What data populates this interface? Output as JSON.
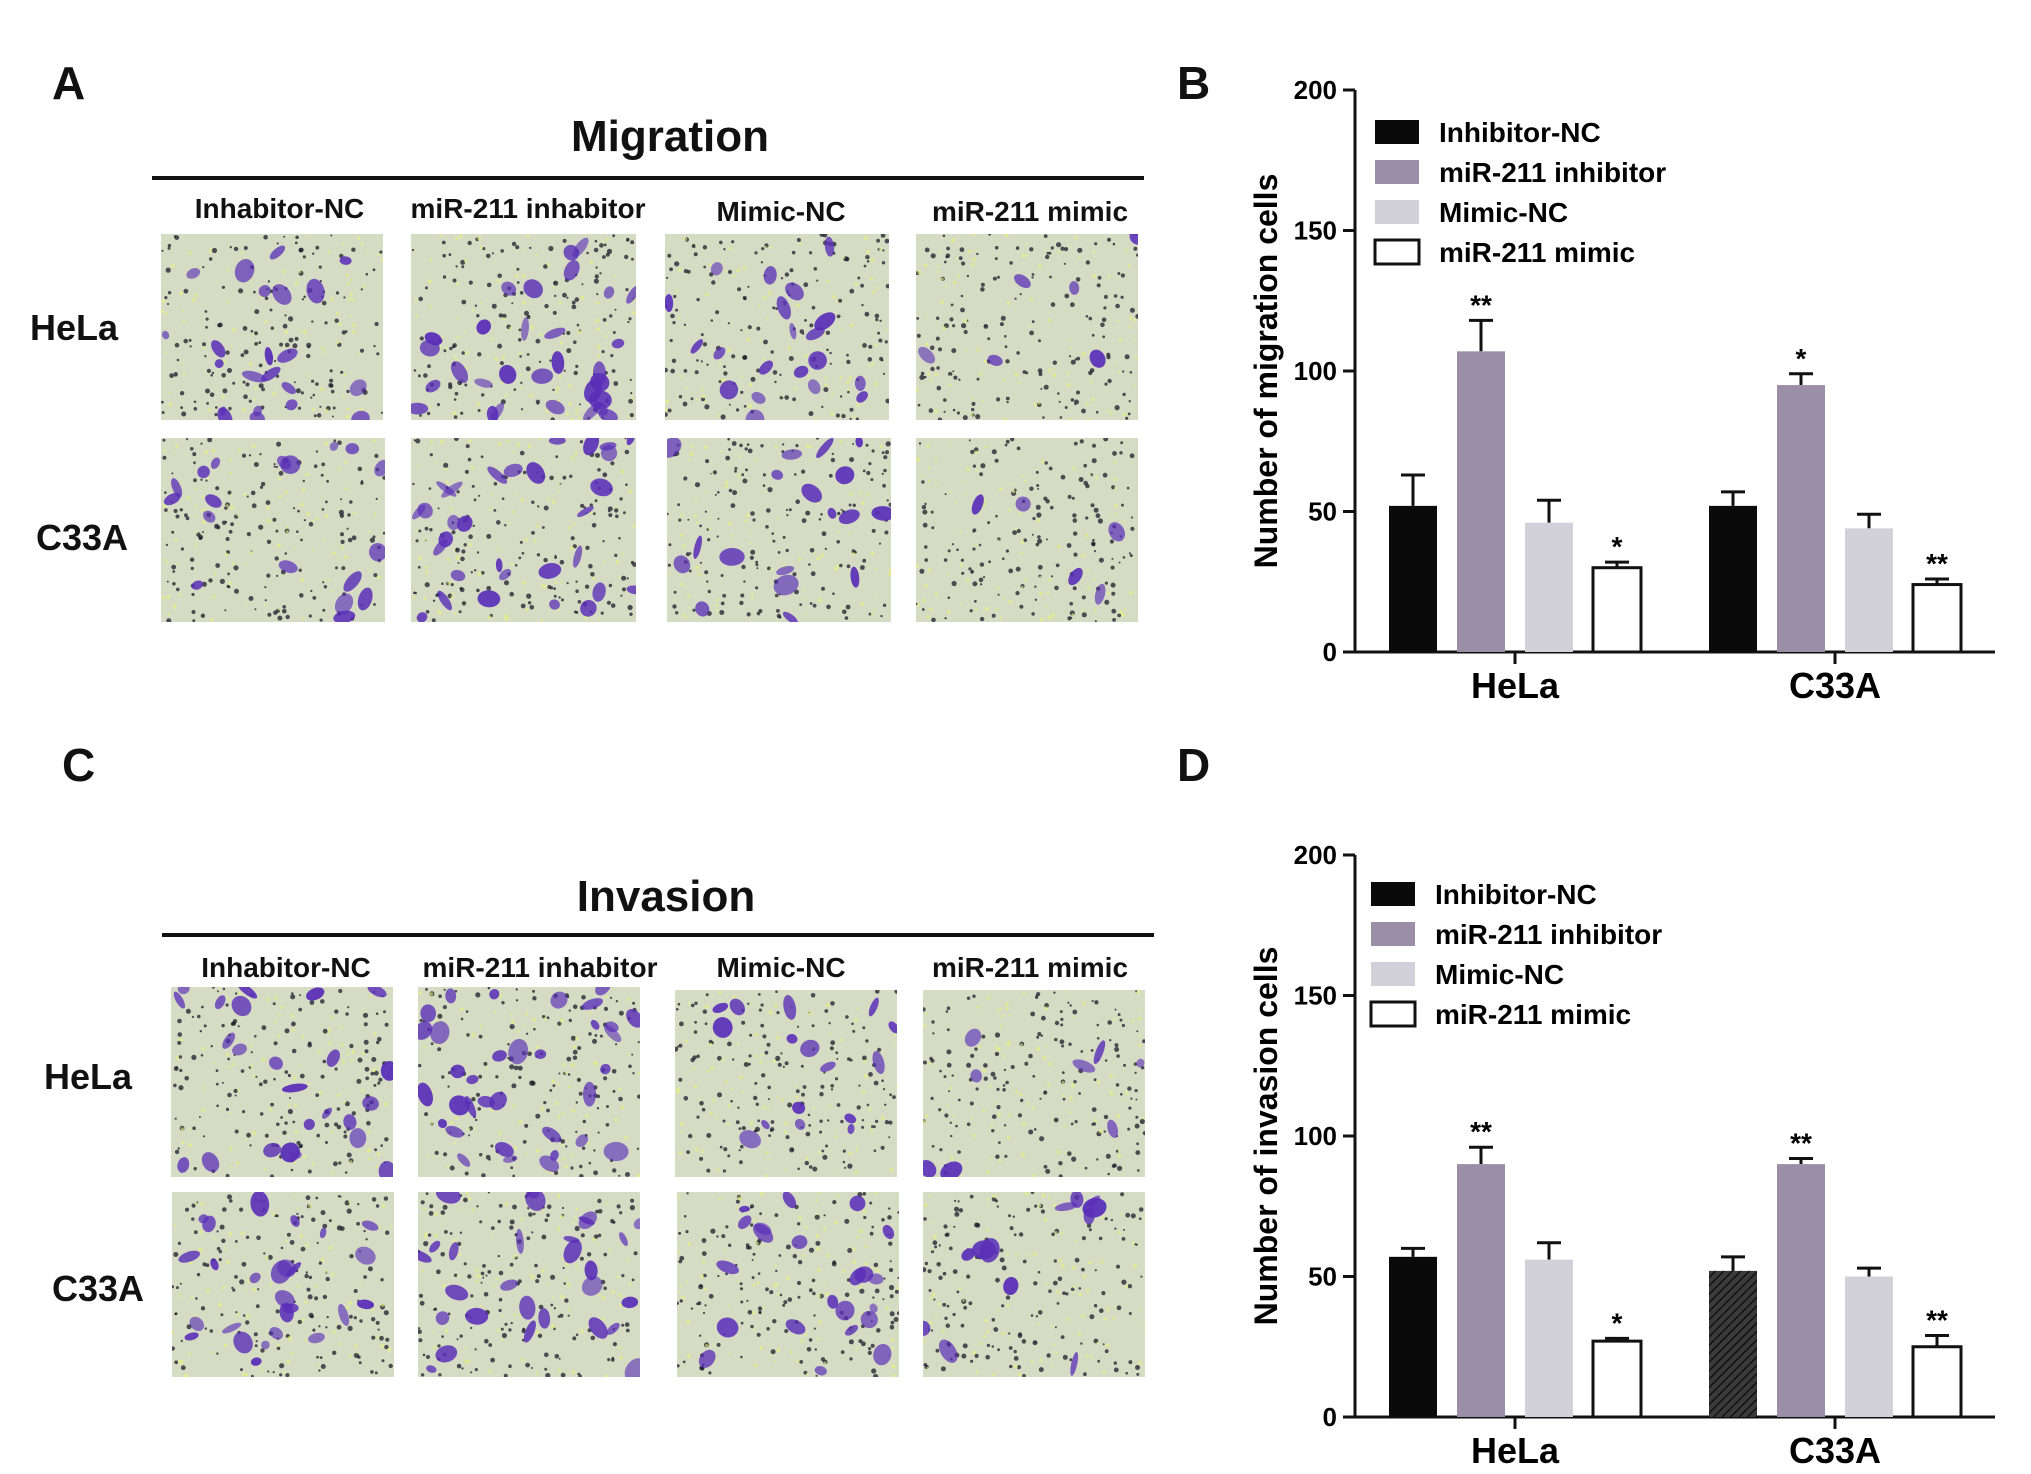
{
  "panels": {
    "A": {
      "letter": "A",
      "title": "Migration",
      "columns": [
        "Inhabitor-NC",
        "miR-211 inhabitor",
        "Mimic-NC",
        "miR-211 mimic"
      ],
      "rows": [
        "HeLa",
        "C33A"
      ]
    },
    "B": {
      "letter": "B"
    },
    "C": {
      "letter": "C",
      "title": "Invasion",
      "columns": [
        "Inhabitor-NC",
        "miR-211 inhabitor",
        "Mimic-NC",
        "miR-211 mimic"
      ],
      "rows": [
        "HeLa",
        "C33A"
      ]
    },
    "D": {
      "letter": "D"
    }
  },
  "colors": {
    "inhibitor_nc": "#0a0a0a",
    "mir211_inhibitor": "#9b8fa8",
    "mimic_nc": "#d2d0d8",
    "mir211_mimic": "#ffffff",
    "stain": "#5a2fb8",
    "background": "#d6dcc4"
  },
  "chart_data": [
    {
      "id": "B",
      "type": "bar",
      "categories": [
        "HeLa",
        "C33A"
      ],
      "ylabel": "Number of migration cells",
      "ylim": [
        0,
        200
      ],
      "yticks": [
        0,
        50,
        100,
        150,
        200
      ],
      "legend_position": "top-left",
      "series": [
        {
          "name": "Inhibitor-NC",
          "values": [
            52,
            52
          ],
          "errors": [
            11,
            5
          ],
          "sig": [
            "",
            ""
          ]
        },
        {
          "name": "miR-211 inhibitor",
          "values": [
            107,
            95
          ],
          "errors": [
            11,
            4
          ],
          "sig": [
            "**",
            "*"
          ]
        },
        {
          "name": "Mimic-NC",
          "values": [
            46,
            44
          ],
          "errors": [
            8,
            5
          ],
          "sig": [
            "",
            ""
          ]
        },
        {
          "name": "miR-211 mimic",
          "values": [
            30,
            24
          ],
          "errors": [
            2,
            2
          ],
          "sig": [
            "*",
            "**"
          ]
        }
      ]
    },
    {
      "id": "D",
      "type": "bar",
      "categories": [
        "HeLa",
        "C33A"
      ],
      "ylabel": "Number of invasion cells",
      "ylim": [
        0,
        200
      ],
      "yticks": [
        0,
        50,
        100,
        150,
        200
      ],
      "legend_position": "top-left",
      "series": [
        {
          "name": "Inhibitor-NC",
          "values": [
            57,
            52
          ],
          "errors": [
            3,
            5
          ],
          "sig": [
            "",
            ""
          ]
        },
        {
          "name": "miR-211 inhibitor",
          "values": [
            90,
            90
          ],
          "errors": [
            6,
            2
          ],
          "sig": [
            "**",
            "**"
          ]
        },
        {
          "name": "Mimic-NC",
          "values": [
            56,
            50
          ],
          "errors": [
            6,
            3
          ],
          "sig": [
            "",
            ""
          ]
        },
        {
          "name": "miR-211 mimic",
          "values": [
            27,
            25
          ],
          "errors": [
            1,
            4
          ],
          "sig": [
            "*",
            "**"
          ]
        }
      ]
    }
  ]
}
